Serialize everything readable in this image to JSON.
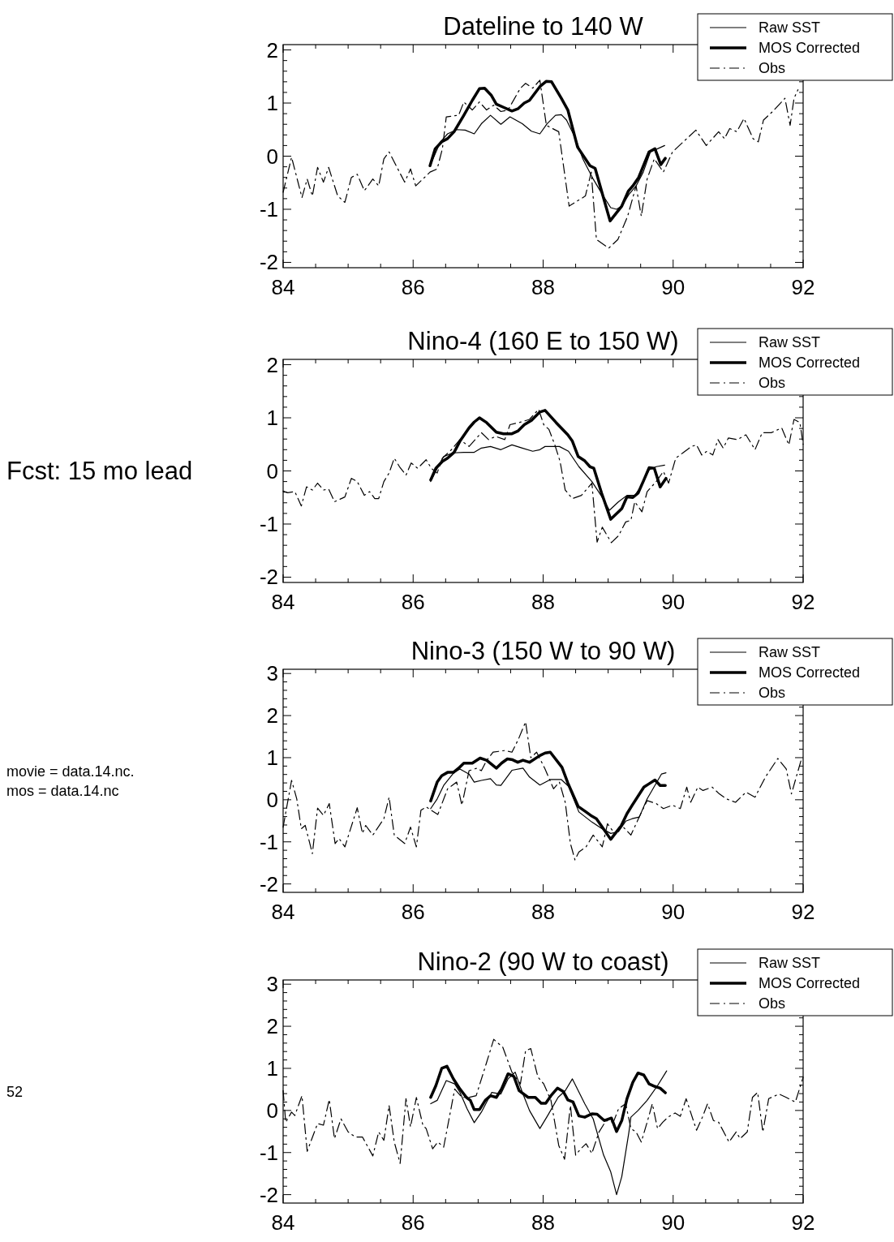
{
  "chart_data": [
    {
      "type": "line",
      "title": "Dateline to 140 W",
      "legend": "top right",
      "xlim": [
        84,
        92
      ],
      "ylim": [
        -2.1,
        2.1
      ],
      "xticks": [
        84,
        {
          "value": 84.5,
          "label": null
        },
        {
          "value": 85,
          "label": null
        },
        {
          "value": 85.5,
          "label": null
        },
        86,
        {
          "value": 86.5,
          "label": null
        },
        {
          "value": 87,
          "label": null
        },
        {
          "value": 87.5,
          "label": null
        },
        88,
        {
          "value": 88.5,
          "label": null
        },
        {
          "value": 89,
          "label": null
        },
        {
          "value": 89.5,
          "label": null
        },
        90,
        {
          "value": 90.5,
          "label": null
        },
        {
          "value": 91,
          "label": null
        },
        {
          "value": 91.5,
          "label": null
        },
        92
      ],
      "yticks": [
        -2,
        {
          "value": -1.8,
          "label": null
        },
        {
          "value": -1.6,
          "label": null
        },
        {
          "value": -1.4,
          "label": null
        },
        {
          "value": -1.2,
          "label": null
        },
        -1,
        {
          "value": -0.8,
          "label": null
        },
        {
          "value": -0.6,
          "label": null
        },
        {
          "value": -0.4,
          "label": null
        },
        {
          "value": -0.2,
          "label": null
        },
        0,
        {
          "value": 0.2,
          "label": null
        },
        {
          "value": 0.4,
          "label": null
        },
        {
          "value": 0.6,
          "label": null
        },
        {
          "value": 0.8,
          "label": null
        },
        1,
        {
          "value": 1.2,
          "label": null
        },
        {
          "value": 1.4,
          "label": null
        },
        {
          "value": 1.6,
          "label": null
        },
        {
          "value": 1.8,
          "label": null
        },
        2
      ],
      "series": [
        {
          "name": "Raw SST",
          "color": "#000000",
          "line_style": "solid",
          "x": [
            86.26,
            86.42,
            86.53,
            86.67,
            86.8,
            86.94,
            87.05,
            87.19,
            87.35,
            87.49,
            87.68,
            87.82,
            87.95,
            88.06,
            88.19,
            88.28,
            88.36,
            88.5,
            88.61,
            88.77,
            88.91,
            89.04,
            89.13,
            89.21,
            89.32,
            89.43,
            89.54,
            89.65,
            89.76,
            89.87
          ],
          "values": [
            -0.18,
            0.27,
            0.42,
            0.5,
            0.49,
            0.42,
            0.61,
            0.77,
            0.6,
            0.74,
            0.61,
            0.47,
            0.42,
            0.61,
            0.77,
            0.78,
            0.68,
            0.33,
            -0.05,
            -0.43,
            -0.72,
            -0.97,
            -1.0,
            -0.94,
            -0.72,
            -0.56,
            -0.3,
            0.08,
            0.14,
            0.2
          ]
        },
        {
          "name": "MOS Corrected",
          "color": "#000000",
          "line_style": "solid",
          "x": [
            86.26,
            86.34,
            86.44,
            86.53,
            86.63,
            86.78,
            86.91,
            87.02,
            87.1,
            87.2,
            87.28,
            87.39,
            87.52,
            87.61,
            87.71,
            87.79,
            87.95,
            88.05,
            88.13,
            88.28,
            88.38,
            88.53,
            88.72,
            88.8,
            89.03,
            89.21,
            89.31,
            89.38,
            89.47,
            89.63,
            89.72,
            89.81,
            89.88
          ],
          "values": [
            -0.18,
            0.14,
            0.27,
            0.33,
            0.46,
            0.77,
            1.05,
            1.27,
            1.28,
            1.15,
            0.98,
            0.92,
            0.85,
            0.89,
            1.0,
            1.05,
            1.31,
            1.41,
            1.4,
            1.09,
            0.87,
            0.17,
            -0.18,
            -0.23,
            -1.22,
            -0.94,
            -0.66,
            -0.56,
            -0.4,
            0.08,
            0.14,
            -0.16,
            -0.04
          ]
        },
        {
          "name": "Obs",
          "color": "#000000",
          "line_style": "dashed",
          "x": [
            84.0,
            84.13,
            84.29,
            84.37,
            84.45,
            84.53,
            84.62,
            84.7,
            84.84,
            84.95,
            85.05,
            85.14,
            85.25,
            85.38,
            85.47,
            85.55,
            85.63,
            85.87,
            85.96,
            86.04,
            86.26,
            86.37,
            86.45,
            86.51,
            86.7,
            86.78,
            86.91,
            87.02,
            87.13,
            87.24,
            87.35,
            87.46,
            87.65,
            87.73,
            87.84,
            87.95,
            88.05,
            88.24,
            88.4,
            88.65,
            88.74,
            88.82,
            89.01,
            89.15,
            89.3,
            89.43,
            89.51,
            89.6,
            89.71,
            89.85,
            89.99,
            90.21,
            90.35,
            90.51,
            90.7,
            90.79,
            90.87,
            90.98,
            91.09,
            91.23,
            91.31,
            91.39,
            91.53,
            91.72,
            91.8,
            91.86,
            91.92
          ],
          "values": [
            -0.68,
            -0.02,
            -0.78,
            -0.43,
            -0.75,
            -0.21,
            -0.49,
            -0.21,
            -0.75,
            -0.87,
            -0.4,
            -0.34,
            -0.65,
            -0.43,
            -0.56,
            -0.05,
            0.08,
            -0.49,
            -0.24,
            -0.56,
            -0.3,
            -0.24,
            0.14,
            0.74,
            0.77,
            1.02,
            0.87,
            1.02,
            0.87,
            0.96,
            0.84,
            0.87,
            1.28,
            1.37,
            1.28,
            1.43,
            0.58,
            0.46,
            -0.94,
            -0.75,
            -0.3,
            -1.57,
            -1.73,
            -1.57,
            -1.13,
            -0.56,
            -1.13,
            -0.43,
            -0.05,
            -0.3,
            0.08,
            0.33,
            0.49,
            0.2,
            0.46,
            0.33,
            0.52,
            0.46,
            0.71,
            0.33,
            0.27,
            0.68,
            0.84,
            1.09,
            0.58,
            1.09,
            1.25
          ]
        }
      ]
    },
    {
      "type": "line",
      "title": "Nino-4 (160 E to 150 W)",
      "legend": "top right",
      "xlim": [
        84,
        92
      ],
      "ylim": [
        -2.1,
        2.1
      ],
      "xticks": [
        84,
        {
          "value": 84.5,
          "label": null
        },
        {
          "value": 85,
          "label": null
        },
        {
          "value": 85.5,
          "label": null
        },
        86,
        {
          "value": 86.5,
          "label": null
        },
        {
          "value": 87,
          "label": null
        },
        {
          "value": 87.5,
          "label": null
        },
        88,
        {
          "value": 88.5,
          "label": null
        },
        {
          "value": 89,
          "label": null
        },
        {
          "value": 89.5,
          "label": null
        },
        90,
        {
          "value": 90.5,
          "label": null
        },
        {
          "value": 91,
          "label": null
        },
        {
          "value": 91.5,
          "label": null
        },
        92
      ],
      "yticks": [
        -2,
        {
          "value": -1.8,
          "label": null
        },
        {
          "value": -1.6,
          "label": null
        },
        {
          "value": -1.4,
          "label": null
        },
        {
          "value": -1.2,
          "label": null
        },
        -1,
        {
          "value": -0.8,
          "label": null
        },
        {
          "value": -0.6,
          "label": null
        },
        {
          "value": -0.4,
          "label": null
        },
        {
          "value": -0.2,
          "label": null
        },
        0,
        {
          "value": 0.2,
          "label": null
        },
        {
          "value": 0.4,
          "label": null
        },
        {
          "value": 0.6,
          "label": null
        },
        {
          "value": 0.8,
          "label": null
        },
        1,
        {
          "value": 1.2,
          "label": null
        },
        {
          "value": 1.4,
          "label": null
        },
        {
          "value": 1.6,
          "label": null
        },
        {
          "value": 1.8,
          "label": null
        },
        2
      ],
      "annotations": [
        "Fcst: 15 mo lead"
      ],
      "series": [
        {
          "name": "Raw SST",
          "color": "#000000",
          "line_style": "solid",
          "x": [
            86.27,
            86.37,
            86.47,
            86.61,
            86.78,
            86.94,
            87.05,
            87.19,
            87.35,
            87.52,
            87.68,
            87.84,
            87.95,
            88.03,
            88.25,
            88.39,
            88.55,
            88.75,
            88.89,
            89.02,
            89.16,
            89.29,
            89.41,
            89.52,
            89.63,
            89.74,
            89.87
          ],
          "values": [
            -0.2,
            0.05,
            0.27,
            0.34,
            0.35,
            0.35,
            0.43,
            0.46,
            0.4,
            0.49,
            0.43,
            0.37,
            0.4,
            0.46,
            0.46,
            0.37,
            0.08,
            -0.2,
            -0.46,
            -0.74,
            -0.58,
            -0.46,
            -0.46,
            -0.27,
            0.02,
            0.08,
            0.11
          ]
        },
        {
          "name": "MOS Corrected",
          "color": "#000000",
          "line_style": "solid",
          "x": [
            86.27,
            86.35,
            86.45,
            86.53,
            86.63,
            86.72,
            86.86,
            86.94,
            87.02,
            87.13,
            87.28,
            87.39,
            87.52,
            87.61,
            87.71,
            87.82,
            87.95,
            88.03,
            88.2,
            88.38,
            88.45,
            88.54,
            88.64,
            88.72,
            88.78,
            88.9,
            89.04,
            89.21,
            89.29,
            89.38,
            89.46,
            89.55,
            89.63,
            89.71,
            89.8,
            89.89
          ],
          "values": [
            -0.17,
            0.05,
            0.18,
            0.24,
            0.35,
            0.56,
            0.81,
            0.92,
            1.0,
            0.91,
            0.73,
            0.7,
            0.7,
            0.75,
            0.87,
            0.95,
            1.11,
            1.14,
            0.91,
            0.68,
            0.56,
            0.27,
            0.19,
            0.08,
            0.05,
            -0.42,
            -0.91,
            -0.71,
            -0.49,
            -0.5,
            -0.42,
            -0.17,
            0.06,
            0.05,
            -0.3,
            -0.14
          ]
        },
        {
          "name": "Obs",
          "color": "#000000",
          "line_style": "dashed",
          "x": [
            84.0,
            84.07,
            84.18,
            84.28,
            84.36,
            84.45,
            84.53,
            84.62,
            84.7,
            84.79,
            84.95,
            85.05,
            85.14,
            85.25,
            85.33,
            85.41,
            85.47,
            85.55,
            85.63,
            85.71,
            85.79,
            85.89,
            85.97,
            86.07,
            86.2,
            86.28,
            86.37,
            86.45,
            86.59,
            86.72,
            86.86,
            87.05,
            87.16,
            87.27,
            87.41,
            87.49,
            87.63,
            87.79,
            87.93,
            88.01,
            88.09,
            88.18,
            88.26,
            88.34,
            88.45,
            88.59,
            88.75,
            88.83,
            88.91,
            89.05,
            89.16,
            89.27,
            89.35,
            89.41,
            89.52,
            89.6,
            89.74,
            89.85,
            89.93,
            90.04,
            90.15,
            90.28,
            90.36,
            90.44,
            90.52,
            90.61,
            90.69,
            90.77,
            90.85,
            90.99,
            91.12,
            91.26,
            91.37,
            91.51,
            91.67,
            91.78,
            91.86,
            91.95,
            92.0
          ],
          "values": [
            -0.38,
            -0.41,
            -0.39,
            -0.66,
            -0.3,
            -0.36,
            -0.23,
            -0.36,
            -0.34,
            -0.58,
            -0.49,
            -0.14,
            -0.2,
            -0.46,
            -0.39,
            -0.52,
            -0.52,
            -0.2,
            -0.04,
            0.24,
            0.08,
            -0.08,
            0.15,
            0.05,
            0.21,
            0.05,
            -0.04,
            0.24,
            0.4,
            0.59,
            0.46,
            0.72,
            0.59,
            0.65,
            0.59,
            0.87,
            0.91,
            0.97,
            1.16,
            0.87,
            0.78,
            0.49,
            0.18,
            -0.36,
            -0.52,
            -0.46,
            -0.23,
            -1.34,
            -1.06,
            -1.35,
            -1.22,
            -0.96,
            -0.93,
            -0.58,
            -0.77,
            -0.39,
            -0.2,
            -0.01,
            -0.23,
            0.24,
            0.34,
            0.46,
            0.49,
            0.3,
            0.37,
            0.3,
            0.59,
            0.43,
            0.62,
            0.59,
            0.68,
            0.4,
            0.72,
            0.72,
            0.81,
            0.49,
            0.97,
            0.91,
            0.5
          ]
        }
      ]
    },
    {
      "type": "line",
      "title": "Nino-3 (150 W to 90 W)",
      "legend": "top right",
      "xlim": [
        84,
        92
      ],
      "ylim": [
        -2.2,
        3.1
      ],
      "xticks": [
        84,
        {
          "value": 84.5,
          "label": null
        },
        {
          "value": 85,
          "label": null
        },
        {
          "value": 85.5,
          "label": null
        },
        86,
        {
          "value": 86.5,
          "label": null
        },
        {
          "value": 87,
          "label": null
        },
        {
          "value": 87.5,
          "label": null
        },
        88,
        {
          "value": 88.5,
          "label": null
        },
        {
          "value": 89,
          "label": null
        },
        {
          "value": 89.5,
          "label": null
        },
        90,
        {
          "value": 90.5,
          "label": null
        },
        {
          "value": 91,
          "label": null
        },
        {
          "value": 91.5,
          "label": null
        },
        92
      ],
      "yticks": [
        -2,
        {
          "value": -1.8,
          "label": null
        },
        {
          "value": -1.6,
          "label": null
        },
        {
          "value": -1.4,
          "label": null
        },
        {
          "value": -1.2,
          "label": null
        },
        -1,
        {
          "value": -0.8,
          "label": null
        },
        {
          "value": -0.6,
          "label": null
        },
        {
          "value": -0.4,
          "label": null
        },
        {
          "value": -0.2,
          "label": null
        },
        0,
        {
          "value": 0.2,
          "label": null
        },
        {
          "value": 0.4,
          "label": null
        },
        {
          "value": 0.6,
          "label": null
        },
        {
          "value": 0.8,
          "label": null
        },
        1,
        {
          "value": 1.2,
          "label": null
        },
        {
          "value": 1.4,
          "label": null
        },
        {
          "value": 1.6,
          "label": null
        },
        {
          "value": 1.8,
          "label": null
        },
        2,
        {
          "value": 2.2,
          "label": null
        },
        {
          "value": 2.4,
          "label": null
        },
        {
          "value": 2.6,
          "label": null
        },
        {
          "value": 2.8,
          "label": null
        },
        3
      ],
      "annotations": [
        "movie = data.14.nc.",
        "mos = data.14.nc"
      ],
      "series": [
        {
          "name": "Raw SST",
          "color": "#000000",
          "line_style": "solid",
          "x": [
            86.27,
            86.37,
            86.47,
            86.63,
            86.72,
            86.86,
            86.94,
            87.05,
            87.19,
            87.28,
            87.35,
            87.52,
            87.69,
            87.79,
            87.95,
            88.11,
            88.28,
            88.39,
            88.55,
            88.75,
            88.91,
            89.04,
            89.16,
            89.27,
            89.37,
            89.48,
            89.6,
            89.82,
            89.89
          ],
          "values": [
            -0.21,
            0.02,
            0.34,
            0.65,
            0.73,
            0.61,
            0.42,
            0.46,
            0.5,
            0.35,
            0.34,
            0.7,
            0.75,
            0.54,
            0.35,
            0.48,
            0.48,
            0.32,
            -0.29,
            -0.53,
            -0.69,
            -0.8,
            -0.76,
            -0.51,
            -0.45,
            -0.41,
            0.02,
            0.61,
            0.64
          ]
        },
        {
          "name": "MOS Corrected",
          "color": "#000000",
          "line_style": "solid",
          "x": [
            86.27,
            86.37,
            86.44,
            86.53,
            86.62,
            86.7,
            86.78,
            86.91,
            87.03,
            87.13,
            87.28,
            87.36,
            87.45,
            87.53,
            87.61,
            87.69,
            87.79,
            87.95,
            88.03,
            88.11,
            88.29,
            88.38,
            88.54,
            88.66,
            88.75,
            88.82,
            89.04,
            89.2,
            89.29,
            89.37,
            89.55,
            89.63,
            89.72,
            89.8,
            89.88
          ],
          "values": [
            -0.03,
            0.42,
            0.57,
            0.65,
            0.65,
            0.75,
            0.87,
            0.87,
            0.99,
            0.94,
            0.75,
            0.87,
            0.97,
            0.95,
            0.89,
            0.94,
            0.89,
            1.05,
            1.11,
            1.13,
            0.77,
            0.4,
            -0.16,
            -0.29,
            -0.39,
            -0.45,
            -0.94,
            -0.62,
            -0.33,
            -0.13,
            0.3,
            0.38,
            0.47,
            0.34,
            0.34
          ]
        },
        {
          "name": "Obs",
          "color": "#000000",
          "line_style": "dashed",
          "x": [
            84.0,
            84.13,
            84.21,
            84.28,
            84.34,
            84.45,
            84.53,
            84.62,
            84.71,
            84.8,
            84.86,
            84.95,
            85.14,
            85.22,
            85.27,
            85.38,
            85.55,
            85.63,
            85.71,
            85.87,
            85.96,
            86.05,
            86.12,
            86.2,
            86.38,
            86.53,
            86.67,
            86.75,
            86.86,
            86.98,
            87.05,
            87.13,
            87.23,
            87.41,
            87.52,
            87.62,
            87.73,
            87.81,
            87.9,
            88.03,
            88.16,
            88.25,
            88.34,
            88.42,
            88.49,
            88.55,
            88.66,
            88.77,
            88.91,
            88.99,
            89.1,
            89.21,
            89.35,
            89.49,
            89.6,
            89.74,
            89.85,
            89.99,
            90.11,
            90.21,
            90.27,
            90.38,
            90.46,
            90.6,
            90.71,
            90.82,
            90.96,
            91.12,
            91.26,
            91.42,
            91.61,
            91.74,
            91.82,
            91.98
          ],
          "values": [
            -0.65,
            0.46,
            0.02,
            -0.69,
            -0.61,
            -1.28,
            -0.2,
            -0.37,
            -0.09,
            -1.04,
            -0.92,
            -1.12,
            -0.19,
            -0.8,
            -0.61,
            -0.84,
            -0.45,
            0.06,
            -0.84,
            -1.04,
            -0.65,
            -1.12,
            -0.25,
            -0.17,
            -0.35,
            0.26,
            0.42,
            -0.13,
            0.69,
            0.75,
            0.69,
            0.93,
            1.13,
            1.17,
            1.13,
            1.44,
            1.85,
            1.0,
            1.13,
            0.73,
            0.26,
            0.42,
            -0.06,
            -1.04,
            -1.43,
            -1.24,
            -1.12,
            -0.84,
            -1.12,
            -0.57,
            -0.8,
            -0.61,
            -0.84,
            -0.37,
            -0.02,
            -0.09,
            -0.21,
            -0.13,
            -0.21,
            0.3,
            -0.06,
            0.3,
            0.22,
            0.3,
            0.14,
            0.02,
            -0.06,
            0.18,
            0.06,
            0.54,
            0.98,
            0.73,
            0.14,
            1.0
          ]
        }
      ]
    },
    {
      "type": "line",
      "title": "Nino-2 (90 W to coast)",
      "legend": "top right",
      "xlim": [
        84,
        92
      ],
      "ylim": [
        -2.2,
        3.1
      ],
      "xticks": [
        84,
        {
          "value": 84.5,
          "label": null
        },
        {
          "value": 85,
          "label": null
        },
        {
          "value": 85.5,
          "label": null
        },
        86,
        {
          "value": 86.5,
          "label": null
        },
        {
          "value": 87,
          "label": null
        },
        {
          "value": 87.5,
          "label": null
        },
        88,
        {
          "value": 88.5,
          "label": null
        },
        {
          "value": 89,
          "label": null
        },
        {
          "value": 89.5,
          "label": null
        },
        90,
        {
          "value": 90.5,
          "label": null
        },
        {
          "value": 91,
          "label": null
        },
        {
          "value": 91.5,
          "label": null
        },
        92
      ],
      "yticks": [
        -2,
        {
          "value": -1.8,
          "label": null
        },
        {
          "value": -1.6,
          "label": null
        },
        {
          "value": -1.4,
          "label": null
        },
        {
          "value": -1.2,
          "label": null
        },
        -1,
        {
          "value": -0.8,
          "label": null
        },
        {
          "value": -0.6,
          "label": null
        },
        {
          "value": -0.4,
          "label": null
        },
        {
          "value": -0.2,
          "label": null
        },
        0,
        {
          "value": 0.2,
          "label": null
        },
        {
          "value": 0.4,
          "label": null
        },
        {
          "value": 0.6,
          "label": null
        },
        {
          "value": 0.8,
          "label": null
        },
        1,
        {
          "value": 1.2,
          "label": null
        },
        {
          "value": 1.4,
          "label": null
        },
        {
          "value": 1.6,
          "label": null
        },
        {
          "value": 1.8,
          "label": null
        },
        2,
        {
          "value": 2.2,
          "label": null
        },
        {
          "value": 2.4,
          "label": null
        },
        {
          "value": 2.6,
          "label": null
        },
        {
          "value": 2.8,
          "label": null
        },
        3
      ],
      "annotations": [
        "52"
      ],
      "series": [
        {
          "name": "Raw SST",
          "color": "#000000",
          "line_style": "solid",
          "x": [
            86.27,
            86.37,
            86.51,
            86.64,
            86.72,
            86.83,
            86.94,
            87.05,
            87.21,
            87.35,
            87.46,
            87.57,
            87.68,
            87.79,
            87.95,
            88.07,
            88.23,
            88.34,
            88.45,
            88.64,
            88.77,
            88.93,
            89.04,
            89.13,
            89.21,
            89.32,
            89.35,
            89.46,
            89.6,
            89.76,
            89.9
          ],
          "values": [
            0.16,
            0.24,
            0.71,
            0.63,
            0.43,
            0.04,
            -0.29,
            -0.04,
            0.43,
            0.39,
            0.75,
            0.91,
            0.43,
            0.0,
            -0.43,
            -0.12,
            0.31,
            0.47,
            0.75,
            0.16,
            -0.2,
            -1.06,
            -1.46,
            -2.0,
            -1.57,
            -0.51,
            -0.16,
            0.0,
            0.24,
            0.59,
            0.94
          ]
        },
        {
          "name": "MOS Corrected",
          "color": "#000000",
          "line_style": "solid",
          "x": [
            86.27,
            86.35,
            86.44,
            86.52,
            86.62,
            86.72,
            86.82,
            86.88,
            86.94,
            87.02,
            87.11,
            87.19,
            87.28,
            87.36,
            87.46,
            87.55,
            87.63,
            87.77,
            87.88,
            87.97,
            88.04,
            88.12,
            88.22,
            88.31,
            88.38,
            88.46,
            88.55,
            88.64,
            88.75,
            88.83,
            88.94,
            89.05,
            89.13,
            89.21,
            89.29,
            89.38,
            89.46,
            89.55,
            89.63,
            89.72,
            89.8,
            89.88
          ],
          "values": [
            0.31,
            0.59,
            1.0,
            1.05,
            0.75,
            0.51,
            0.31,
            0.24,
            0.02,
            0.02,
            0.24,
            0.35,
            0.31,
            0.51,
            0.87,
            0.81,
            0.47,
            0.31,
            0.31,
            0.17,
            0.17,
            0.35,
            0.53,
            0.45,
            0.25,
            0.2,
            -0.13,
            -0.16,
            -0.08,
            -0.09,
            -0.24,
            -0.18,
            -0.5,
            -0.24,
            0.28,
            0.67,
            0.89,
            0.84,
            0.63,
            0.57,
            0.53,
            0.42
          ]
        },
        {
          "name": "Obs",
          "color": "#000000",
          "line_style": "dashed",
          "x": [
            84.0,
            84.04,
            84.13,
            84.18,
            84.29,
            84.37,
            84.53,
            84.62,
            84.71,
            84.79,
            84.89,
            85.0,
            85.11,
            85.22,
            85.38,
            85.47,
            85.55,
            85.63,
            85.71,
            85.8,
            85.89,
            85.96,
            86.05,
            86.15,
            86.2,
            86.3,
            86.38,
            86.47,
            86.64,
            86.75,
            86.86,
            86.97,
            87.13,
            87.24,
            87.38,
            87.52,
            87.65,
            87.73,
            87.81,
            87.92,
            88.01,
            88.12,
            88.24,
            88.33,
            88.42,
            88.5,
            88.58,
            88.66,
            88.75,
            88.86,
            88.97,
            89.08,
            89.16,
            89.27,
            89.35,
            89.43,
            89.51,
            89.6,
            89.68,
            89.76,
            89.84,
            89.92,
            90.03,
            90.11,
            90.2,
            90.36,
            90.45,
            90.53,
            90.62,
            90.7,
            90.86,
            90.97,
            91.03,
            91.14,
            91.22,
            91.3,
            91.38,
            91.47,
            91.63,
            91.74,
            91.88,
            92.0
          ],
          "values": [
            0.47,
            -0.28,
            -0.04,
            -0.12,
            0.35,
            -0.97,
            -0.31,
            -0.35,
            0.26,
            -0.67,
            -0.2,
            -0.51,
            -0.63,
            -0.63,
            -1.08,
            -0.51,
            -0.71,
            0.12,
            -0.75,
            -1.26,
            0.28,
            -0.39,
            0.31,
            -0.35,
            -0.43,
            -0.91,
            -0.75,
            -0.87,
            0.51,
            0.31,
            0.31,
            0.35,
            1.14,
            1.69,
            1.5,
            0.91,
            0.63,
            1.42,
            1.47,
            0.79,
            0.63,
            0.24,
            -0.83,
            -1.16,
            0.12,
            -1.06,
            -0.91,
            -0.79,
            -1.02,
            -0.51,
            -0.24,
            -0.28,
            0.04,
            0.16,
            -0.43,
            -0.51,
            -0.75,
            -0.28,
            0.16,
            -0.43,
            -0.28,
            -0.16,
            -0.06,
            -0.14,
            0.28,
            -0.47,
            -0.16,
            0.16,
            -0.24,
            -0.28,
            -0.75,
            -0.51,
            -0.67,
            -0.51,
            0.31,
            0.43,
            -0.51,
            0.28,
            0.39,
            0.31,
            0.2,
            0.79
          ]
        }
      ]
    }
  ]
}
